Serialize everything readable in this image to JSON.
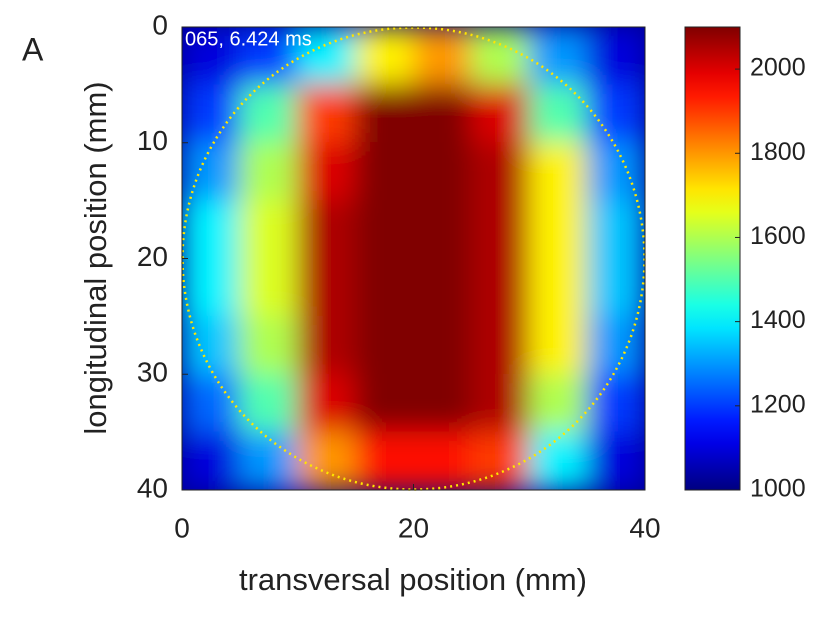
{
  "chart_data": {
    "type": "heatmap",
    "panel_label": "A",
    "annotation": "065, 6.424 ms",
    "x_label": "transversal position (mm)",
    "y_label": "longitudinal position (mm)",
    "xlim": [
      0,
      40
    ],
    "xticks": [
      0,
      20,
      40
    ],
    "ylim": [
      0,
      40
    ],
    "yticks": [
      0,
      10,
      20,
      30,
      40
    ],
    "y_reversed": true,
    "clim": [
      1000,
      2100
    ],
    "cticks": [
      1000,
      1200,
      1400,
      1600,
      1800,
      2000
    ],
    "colormap": "jet",
    "z": [
      [
        1100,
        1200,
        1400,
        1700,
        1800,
        1600,
        1300,
        1100
      ],
      [
        1200,
        1500,
        1900,
        2100,
        2100,
        2000,
        1500,
        1200
      ],
      [
        1300,
        1600,
        2000,
        2100,
        2100,
        2050,
        1700,
        1300
      ],
      [
        1400,
        1650,
        2050,
        2100,
        2100,
        2050,
        1700,
        1350
      ],
      [
        1400,
        1650,
        2050,
        2100,
        2100,
        2050,
        1700,
        1350
      ],
      [
        1350,
        1600,
        2050,
        2100,
        2100,
        2050,
        1700,
        1300
      ],
      [
        1250,
        1500,
        2000,
        2100,
        2100,
        2050,
        1600,
        1200
      ],
      [
        1100,
        1300,
        1800,
        1950,
        1950,
        1900,
        1400,
        1100
      ]
    ]
  }
}
